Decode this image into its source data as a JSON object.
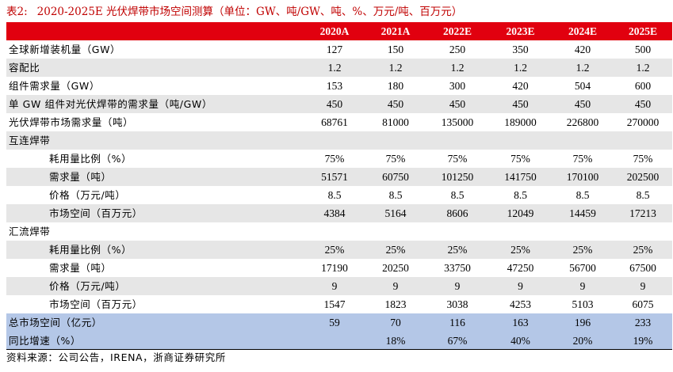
{
  "caption": {
    "label": "表2:",
    "title": "2020-2025E 光伏焊带市场空间测算（单位：GW、吨/GW、吨、%、万元/吨、百万元）"
  },
  "table": {
    "columns": [
      "2020A",
      "2021A",
      "2022E",
      "2023E",
      "2024E",
      "2025E"
    ],
    "rows": [
      {
        "label": "全球新增装机量（GW）",
        "values": [
          "127",
          "150",
          "250",
          "350",
          "420",
          "500"
        ]
      },
      {
        "label": "容配比",
        "values": [
          "1.2",
          "1.2",
          "1.2",
          "1.2",
          "1.2",
          "1.2"
        ]
      },
      {
        "label": "组件需求量（GW）",
        "values": [
          "153",
          "180",
          "300",
          "420",
          "504",
          "600"
        ]
      },
      {
        "label": "单 GW 组件对光伏焊带的需求量（吨/GW）",
        "values": [
          "450",
          "450",
          "450",
          "450",
          "450",
          "450"
        ]
      },
      {
        "label": "光伏焊带市场需求量（吨）",
        "values": [
          "68761",
          "81000",
          "135000",
          "189000",
          "226800",
          "270000"
        ]
      },
      {
        "label": "互连焊带",
        "values": [
          "",
          "",
          "",
          "",
          "",
          ""
        ]
      },
      {
        "label": "耗用量比例（%）",
        "values": [
          "75%",
          "75%",
          "75%",
          "75%",
          "75%",
          "75%"
        ]
      },
      {
        "label": "需求量（吨）",
        "values": [
          "51571",
          "60750",
          "101250",
          "141750",
          "170100",
          "202500"
        ]
      },
      {
        "label": "价格（万元/吨）",
        "values": [
          "8.5",
          "8.5",
          "8.5",
          "8.5",
          "8.5",
          "8.5"
        ]
      },
      {
        "label": "市场空间（百万元）",
        "values": [
          "4384",
          "5164",
          "8606",
          "12049",
          "14459",
          "17213"
        ]
      },
      {
        "label": "汇流焊带",
        "values": [
          "",
          "",
          "",
          "",
          "",
          ""
        ]
      },
      {
        "label": "耗用量比例（%）",
        "values": [
          "25%",
          "25%",
          "25%",
          "25%",
          "25%",
          "25%"
        ]
      },
      {
        "label": "需求量（吨）",
        "values": [
          "17190",
          "20250",
          "33750",
          "47250",
          "56700",
          "67500"
        ]
      },
      {
        "label": "价格（万元/吨）",
        "values": [
          "9",
          "9",
          "9",
          "9",
          "9",
          "9"
        ]
      },
      {
        "label": "市场空间（百万元）",
        "values": [
          "1547",
          "1823",
          "3038",
          "4253",
          "5103",
          "6075"
        ]
      },
      {
        "label": "总市场空间（亿元）",
        "values": [
          "59",
          "70",
          "116",
          "163",
          "196",
          "233"
        ]
      },
      {
        "label": "同比增速（%）",
        "values": [
          "",
          "18%",
          "67%",
          "40%",
          "20%",
          "19%"
        ]
      }
    ]
  },
  "source_note": "资料来源：公司公告，IRENA，浙商证券研究所",
  "colors": {
    "header_bg": "#e1000f",
    "caption_text": "#c00000",
    "shaded_row": "#e6e6e6",
    "summary_row": "#b4c7e7"
  }
}
